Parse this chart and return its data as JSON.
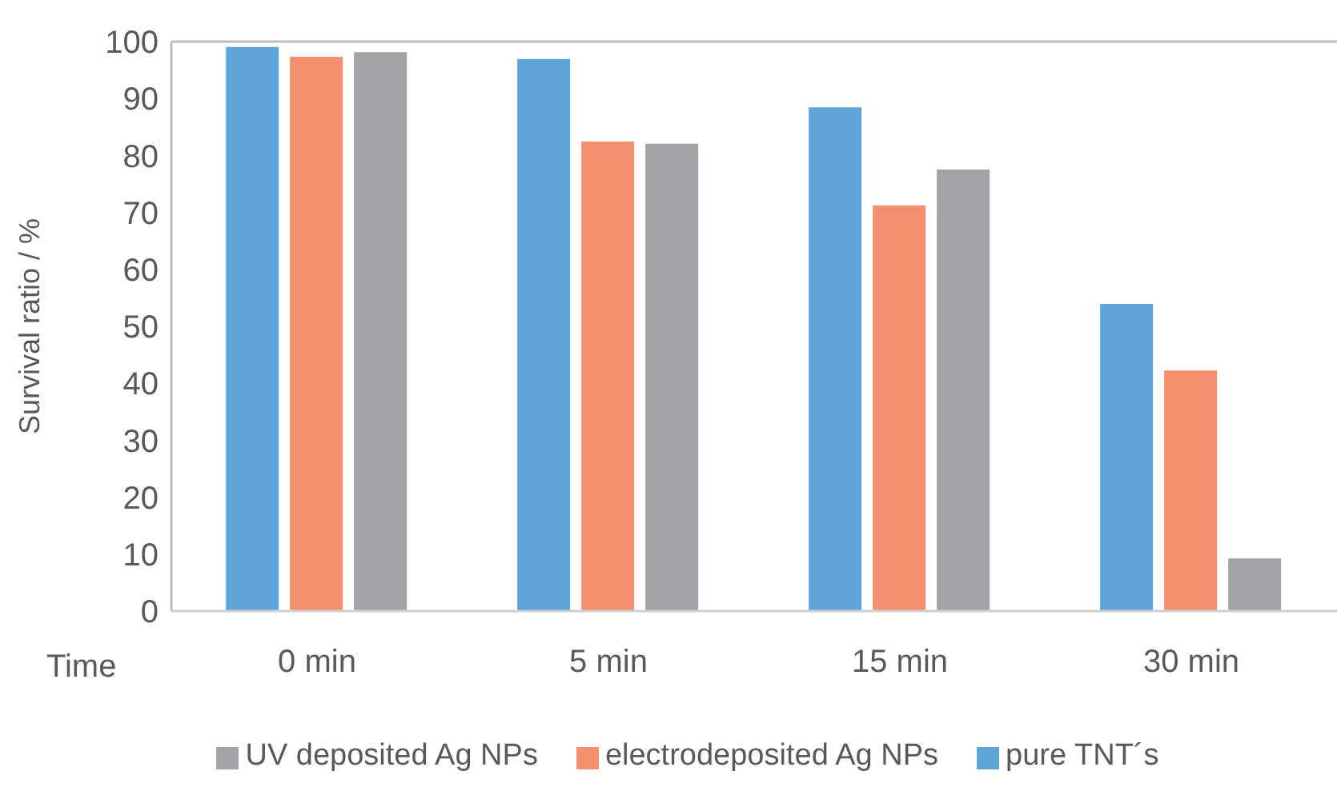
{
  "chart_data": {
    "type": "bar",
    "xlabel": "Time",
    "ylabel": "Survival ratio / %",
    "categories": [
      "0 min",
      "5 min",
      "15 min",
      "30 min"
    ],
    "series": [
      {
        "name": "pure TNT´s",
        "color": "#5fa5d9",
        "values": [
          98.9,
          96.8,
          88.3,
          53.8
        ]
      },
      {
        "name": "electrodeposited Ag NPs",
        "color": "#f4906f",
        "values": [
          97.2,
          82.3,
          71.1,
          42.1
        ]
      },
      {
        "name": "UV deposited Ag NPs",
        "color": "#a2a3a6",
        "values": [
          98.0,
          81.9,
          77.4,
          9.1
        ]
      }
    ],
    "ylim": [
      0,
      100
    ],
    "yticks": [
      0,
      10,
      20,
      30,
      40,
      50,
      60,
      70,
      80,
      90,
      100
    ],
    "grid": false,
    "legend": "bottom"
  }
}
